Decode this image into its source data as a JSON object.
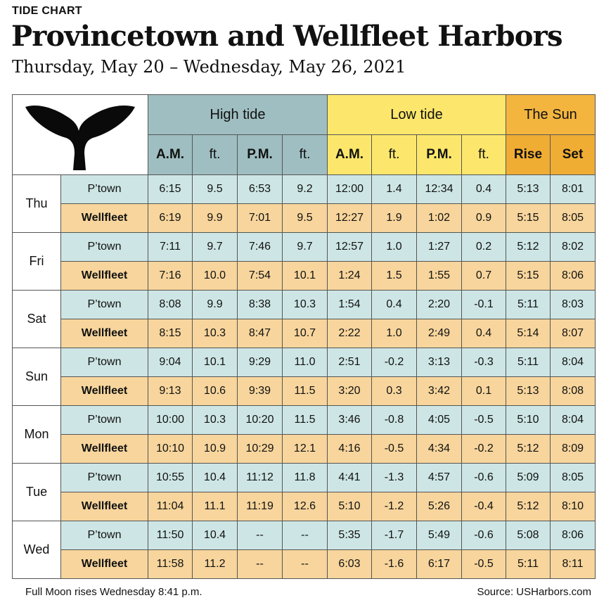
{
  "kicker": "TIDE CHART",
  "title": "Provincetown and Wellfleet Harbors",
  "subtitle": "Thursday, May 20 – Wednesday, May 26, 2021",
  "logo_icon": "whale-tail-icon",
  "colors": {
    "high": "#9fbec1",
    "low": "#fce76c",
    "sun": "#f0ad34",
    "ptown_row": "#cde6e5",
    "wellfleet_row": "#f7d59c"
  },
  "groups": {
    "high": "High tide",
    "low": "Low tide",
    "sun": "The Sun"
  },
  "subheaders": {
    "am": "A.M.",
    "ft": "ft.",
    "pm": "P.M.",
    "rise": "Rise",
    "set": "Set"
  },
  "days": [
    {
      "day": "Thu",
      "rows": [
        {
          "loc": "P’town",
          "cells": [
            "6:15",
            "9.5",
            "6:53",
            "9.2",
            "12:00",
            "1.4",
            "12:34",
            "0.4",
            "5:13",
            "8:01"
          ]
        },
        {
          "loc": "Wellfleet",
          "cells": [
            "6:19",
            "9.9",
            "7:01",
            "9.5",
            "12:27",
            "1.9",
            "1:02",
            "0.9",
            "5:15",
            "8:05"
          ]
        }
      ]
    },
    {
      "day": "Fri",
      "rows": [
        {
          "loc": "P’town",
          "cells": [
            "7:11",
            "9.7",
            "7:46",
            "9.7",
            "12:57",
            "1.0",
            "1:27",
            "0.2",
            "5:12",
            "8:02"
          ]
        },
        {
          "loc": "Wellfleet",
          "cells": [
            "7:16",
            "10.0",
            "7:54",
            "10.1",
            "1:24",
            "1.5",
            "1:55",
            "0.7",
            "5:15",
            "8:06"
          ]
        }
      ]
    },
    {
      "day": "Sat",
      "rows": [
        {
          "loc": "P’town",
          "cells": [
            "8:08",
            "9.9",
            "8:38",
            "10.3",
            "1:54",
            "0.4",
            "2:20",
            "-0.1",
            "5:11",
            "8:03"
          ]
        },
        {
          "loc": "Wellfleet",
          "cells": [
            "8:15",
            "10.3",
            "8:47",
            "10.7",
            "2:22",
            "1.0",
            "2:49",
            "0.4",
            "5:14",
            "8:07"
          ]
        }
      ]
    },
    {
      "day": "Sun",
      "rows": [
        {
          "loc": "P’town",
          "cells": [
            "9:04",
            "10.1",
            "9:29",
            "11.0",
            "2:51",
            "-0.2",
            "3:13",
            "-0.3",
            "5:11",
            "8:04"
          ]
        },
        {
          "loc": "Wellfleet",
          "cells": [
            "9:13",
            "10.6",
            "9:39",
            "11.5",
            "3:20",
            "0.3",
            "3:42",
            "0.1",
            "5:13",
            "8:08"
          ]
        }
      ]
    },
    {
      "day": "Mon",
      "rows": [
        {
          "loc": "P’town",
          "cells": [
            "10:00",
            "10.3",
            "10:20",
            "11.5",
            "3:46",
            "-0.8",
            "4:05",
            "-0.5",
            "5:10",
            "8:04"
          ]
        },
        {
          "loc": "Wellfleet",
          "cells": [
            "10:10",
            "10.9",
            "10:29",
            "12.1",
            "4:16",
            "-0.5",
            "4:34",
            "-0.2",
            "5:12",
            "8:09"
          ]
        }
      ]
    },
    {
      "day": "Tue",
      "rows": [
        {
          "loc": "P’town",
          "cells": [
            "10:55",
            "10.4",
            "11:12",
            "11.8",
            "4:41",
            "-1.3",
            "4:57",
            "-0.6",
            "5:09",
            "8:05"
          ]
        },
        {
          "loc": "Wellfleet",
          "cells": [
            "11:04",
            "11.1",
            "11:19",
            "12.6",
            "5:10",
            "-1.2",
            "5:26",
            "-0.4",
            "5:12",
            "8:10"
          ]
        }
      ]
    },
    {
      "day": "Wed",
      "rows": [
        {
          "loc": "P’town",
          "cells": [
            "11:50",
            "10.4",
            "--",
            "--",
            "5:35",
            "-1.7",
            "5:49",
            "-0.6",
            "5:08",
            "8:06"
          ]
        },
        {
          "loc": "Wellfleet",
          "cells": [
            "11:58",
            "11.2",
            "--",
            "--",
            "6:03",
            "-1.6",
            "6:17",
            "-0.5",
            "5:11",
            "8:11"
          ]
        }
      ]
    }
  ],
  "footer": {
    "note": "Full Moon rises Wednesday 8:41 p.m.",
    "source": "Source: USHarbors.com"
  }
}
